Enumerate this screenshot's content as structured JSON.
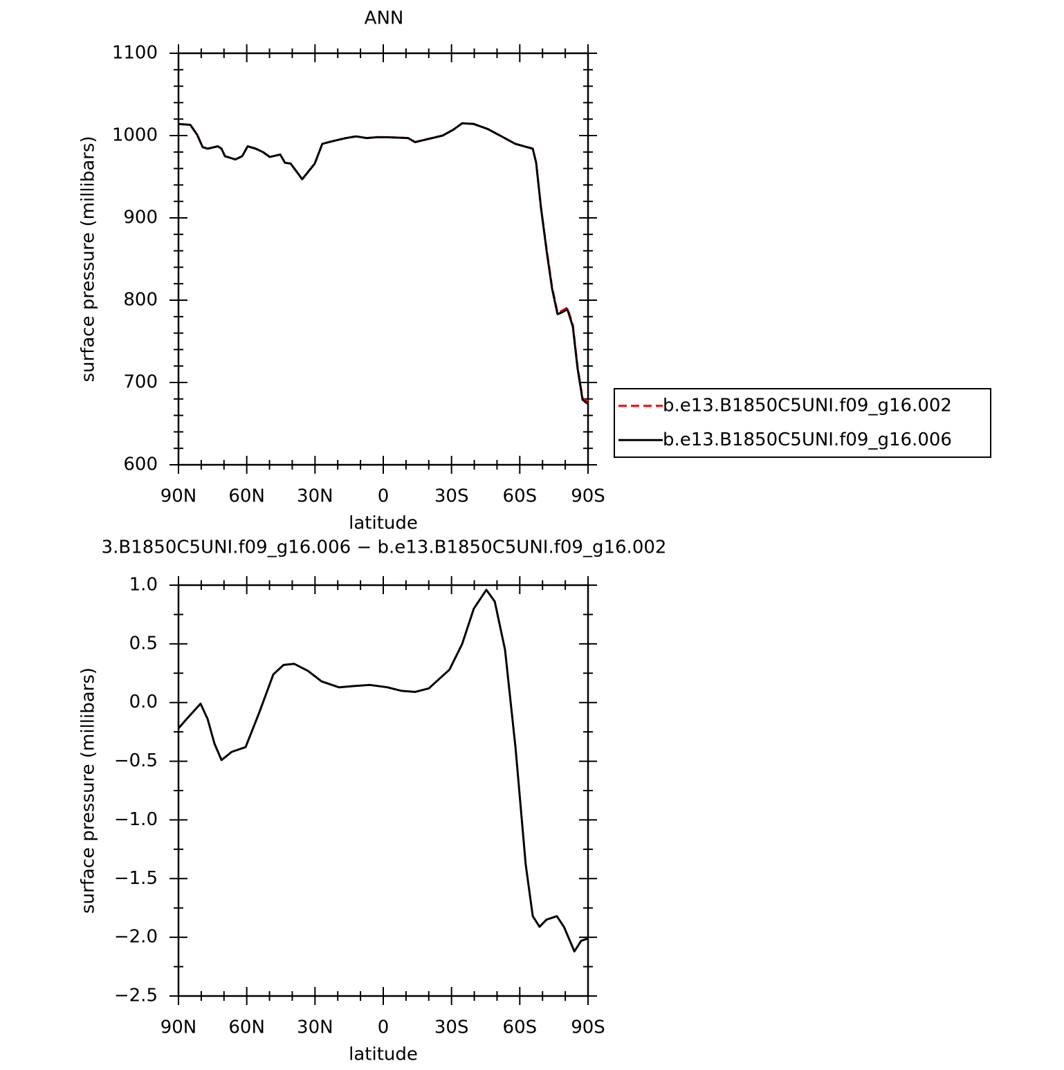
{
  "chart_data": [
    {
      "type": "line",
      "title": "ANN",
      "xlabel": "latitude",
      "ylabel": "surface pressure (millibars)",
      "xlim": [
        90,
        -90
      ],
      "xticks": [
        {
          "value": 90,
          "label": "90N"
        },
        {
          "value": 60,
          "label": "60N"
        },
        {
          "value": 30,
          "label": "30N"
        },
        0,
        {
          "value": -30,
          "label": "30S"
        },
        {
          "value": -60,
          "label": "60S"
        },
        {
          "value": -90,
          "label": "90S"
        }
      ],
      "ylim": [
        600,
        1100
      ],
      "yticks": [
        600,
        700,
        800,
        900,
        1000,
        1100
      ],
      "legend": "right",
      "x": [
        90,
        84.8,
        81.8,
        79.4,
        77.2,
        72.7,
        71.1,
        69.6,
        65,
        62,
        59.6,
        56,
        52.9,
        49.9,
        45.3,
        43.2,
        40.7,
        35.6,
        30.1,
        26.8,
        22.5,
        16.4,
        11.9,
        7.3,
        2.7,
        -1.8,
        -10.9,
        -14,
        -18.5,
        -26.1,
        -30.7,
        -34.7,
        -39.8,
        -45.9,
        -52,
        -58,
        -65.7,
        -67.2,
        -69.3,
        -71.8,
        -74.2,
        -76.6,
        -78.4,
        -80.9,
        -83.3,
        -85.4,
        -87.6,
        -89.4,
        -90
      ],
      "series": [
        {
          "name": "b.e13.B1850C5UNI.f09_g16.002",
          "color": "#ff0000",
          "dash": true,
          "values": [
            1014,
            1013,
            1001,
            986,
            984,
            987,
            984,
            975,
            971,
            975,
            987,
            984,
            980,
            974,
            977,
            967,
            966,
            947,
            966,
            990,
            993,
            997,
            999,
            997,
            998,
            998,
            997,
            992,
            995,
            1000,
            1007,
            1015,
            1014,
            1008,
            999,
            990,
            984,
            967,
            913,
            862,
            816,
            785,
            787,
            791,
            770,
            719,
            681,
            677,
            679
          ]
        },
        {
          "name": "b.e13.B1850C5UNI.f09_g16.006",
          "color": "#000000",
          "dash": false,
          "values": [
            1014,
            1013,
            1001,
            986,
            984,
            987,
            984,
            975,
            971,
            975,
            987,
            984,
            980,
            974,
            977,
            967,
            966,
            947,
            966,
            990,
            993,
            997,
            999,
            997,
            998,
            998,
            997,
            992,
            995,
            1000,
            1007,
            1015,
            1014,
            1008,
            999,
            990,
            984,
            967,
            913,
            860,
            814,
            783,
            785,
            789,
            768,
            717,
            679,
            675,
            677
          ]
        }
      ]
    },
    {
      "type": "line",
      "title": "3.B1850C5UNI.f09_g16.006 − b.e13.B1850C5UNI.f09_g16.002",
      "xlabel": "latitude",
      "ylabel": "surface pressure (millibars)",
      "xlim": [
        90,
        -90
      ],
      "xticks": [
        {
          "value": 90,
          "label": "90N"
        },
        {
          "value": 60,
          "label": "60N"
        },
        {
          "value": 30,
          "label": "30N"
        },
        0,
        {
          "value": -30,
          "label": "30S"
        },
        {
          "value": -60,
          "label": "60S"
        },
        {
          "value": -90,
          "label": "90S"
        }
      ],
      "ylim": [
        -2.5,
        1.0
      ],
      "yticks": [
        {
          "value": -2.5,
          "label": "−2.5"
        },
        {
          "value": -2,
          "label": "−2.0"
        },
        {
          "value": -1.5,
          "label": "−1.5"
        },
        {
          "value": -1,
          "label": "−1.0"
        },
        {
          "value": -0.5,
          "label": "−0.5"
        },
        {
          "value": 0,
          "label": "0.0"
        },
        0.5,
        {
          "value": 1,
          "label": "1.0"
        }
      ],
      "x": [
        90,
        86.4,
        80.3,
        77.2,
        74.2,
        71.1,
        66.6,
        60.5,
        54.4,
        48.3,
        43.8,
        39.2,
        33.1,
        27.1,
        19.5,
        13.4,
        5.8,
        -1.8,
        -7.8,
        -13.9,
        -20,
        -29.1,
        -34.7,
        -39.8,
        -45.3,
        -49,
        -53.5,
        -58.1,
        -62.6,
        -65.7,
        -68.7,
        -71.7,
        -76.3,
        -79.4,
        -84,
        -87,
        -90
      ],
      "series": [
        {
          "name": "difference",
          "color": "#000000",
          "dash": false,
          "values": [
            -0.22,
            -0.14,
            -0.01,
            -0.14,
            -0.35,
            -0.49,
            -0.42,
            -0.38,
            -0.08,
            0.24,
            0.32,
            0.33,
            0.27,
            0.18,
            0.13,
            0.14,
            0.15,
            0.13,
            0.1,
            0.09,
            0.12,
            0.28,
            0.5,
            0.8,
            0.96,
            0.86,
            0.45,
            -0.38,
            -1.38,
            -1.82,
            -1.91,
            -1.85,
            -1.82,
            -1.91,
            -2.12,
            -2.03,
            -2.01
          ]
        }
      ]
    }
  ]
}
